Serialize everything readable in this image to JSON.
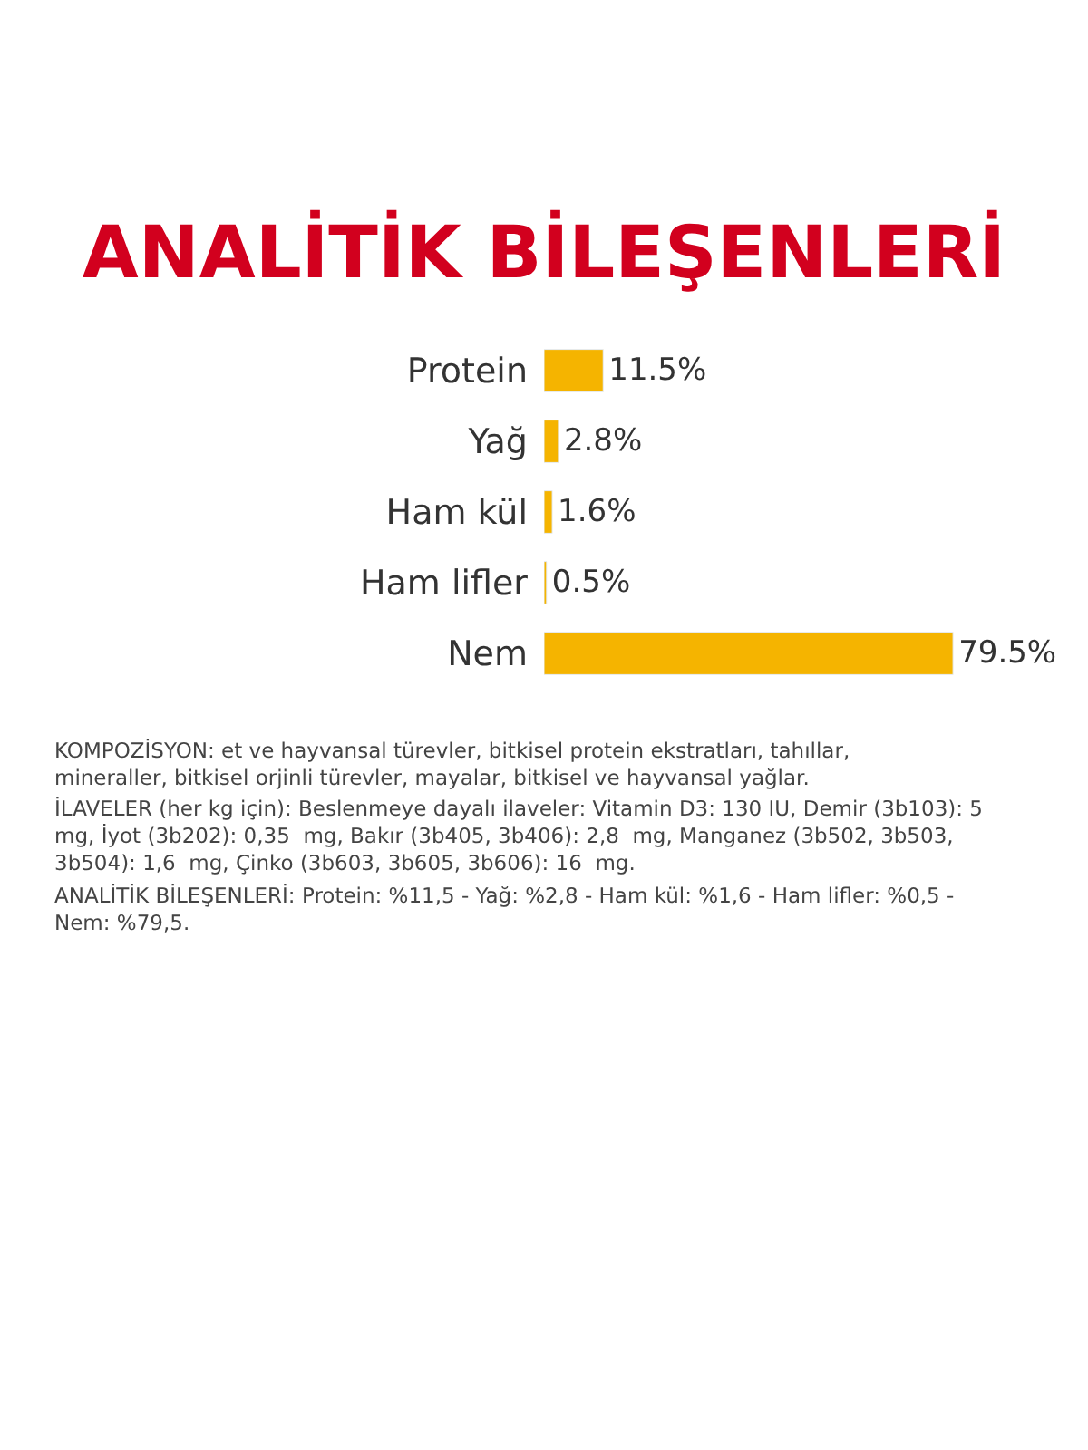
{
  "chart_data": {
    "type": "bar",
    "orientation": "horizontal",
    "title": "ANALİTİK BİLEŞENLERİ",
    "categories": [
      "Protein",
      "Yağ",
      "Ham kül",
      "Ham lifler",
      "Nem"
    ],
    "values": [
      11.5,
      2.8,
      1.6,
      0.5,
      79.5
    ],
    "value_labels": [
      "11.5%",
      "2.8%",
      "1.6%",
      "0.5%",
      "79.5%"
    ],
    "color": "#f5b400",
    "annotations": [
      "KOMPOZİSYON: et ve hayvansal türevler, bitkisel protein ekstratları, tahıllar, mineraller, bitkisel orjinli türevler, mayalar, bitkisel ve hayvansal yağlar.",
      "İLAVELER (her kg için): Beslenmeye dayalı ilaveler: Vitamin D3: 130 IU, Demir (3b103): 5  mg, İyot (3b202): 0,35  mg, Bakır (3b405, 3b406): 2,8  mg, Manganez (3b502, 3b503, 3b504): 1,6  mg, Çinko (3b603, 3b605, 3b606): 16  mg.",
      "ANALİTİK BİLEŞENLERİ: Protein: %11,5 - Yağ: %2,8 - Ham kül: %1,6 - Ham lifler: %0,5 - Nem: %79,5."
    ]
  }
}
